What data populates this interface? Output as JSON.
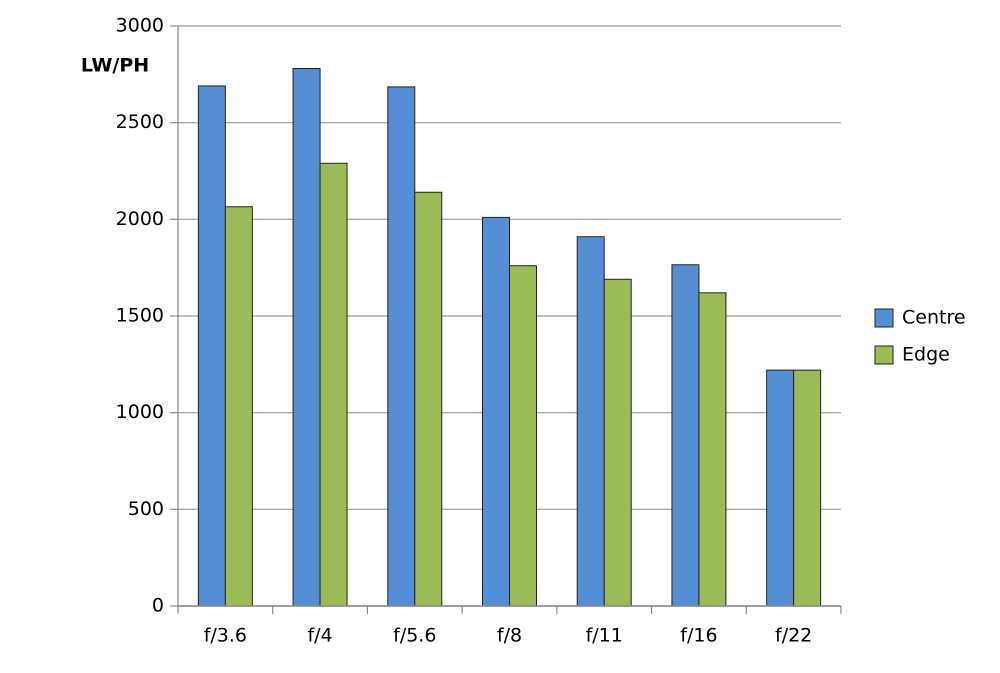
{
  "chart_data": {
    "type": "bar",
    "y_label": "LW/PH",
    "categories": [
      "f/3.6",
      "f/4",
      "f/5.6",
      "f/8",
      "f/11",
      "f/16",
      "f/22"
    ],
    "series": [
      {
        "name": "Centre",
        "color": "#558ed5",
        "values": [
          2690,
          2780,
          2685,
          2010,
          1910,
          1765,
          1220
        ]
      },
      {
        "name": "Edge",
        "color": "#9bbb59",
        "values": [
          2065,
          2290,
          2140,
          1760,
          1690,
          1620,
          1220
        ]
      }
    ],
    "ylim": [
      0,
      3000
    ],
    "yticks": [
      0,
      500,
      1000,
      1500,
      2000,
      2500,
      3000
    ],
    "grid": true,
    "legend": "right"
  }
}
